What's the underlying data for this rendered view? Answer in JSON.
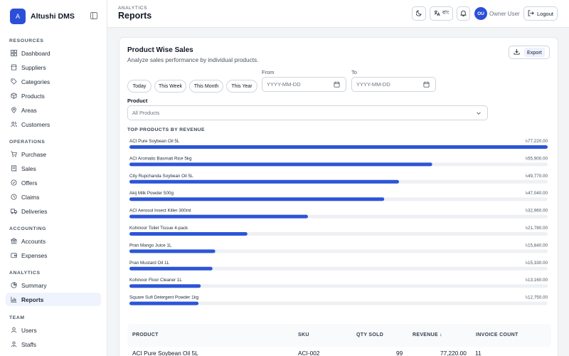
{
  "brand": {
    "logo_letter": "A",
    "name": "Altushi DMS"
  },
  "sidebar": {
    "sections": [
      {
        "title": "RESOURCES",
        "items": [
          {
            "label": "Dashboard",
            "icon": "grid-icon"
          },
          {
            "label": "Suppliers",
            "icon": "storefront-icon"
          },
          {
            "label": "Categories",
            "icon": "tag-icon"
          },
          {
            "label": "Products",
            "icon": "box-icon"
          },
          {
            "label": "Areas",
            "icon": "map-pin-icon"
          },
          {
            "label": "Customers",
            "icon": "users-icon"
          }
        ]
      },
      {
        "title": "OPERATIONS",
        "items": [
          {
            "label": "Purchase",
            "icon": "cart-icon"
          },
          {
            "label": "Sales",
            "icon": "receipt-icon"
          },
          {
            "label": "Offers",
            "icon": "badge-icon"
          },
          {
            "label": "Claims",
            "icon": "clock-icon"
          },
          {
            "label": "Deliveries",
            "icon": "truck-icon"
          }
        ]
      },
      {
        "title": "ACCOUNTING",
        "items": [
          {
            "label": "Accounts",
            "icon": "bank-icon"
          },
          {
            "label": "Expenses",
            "icon": "wallet-icon"
          }
        ]
      },
      {
        "title": "ANALYTICS",
        "items": [
          {
            "label": "Summary",
            "icon": "pie-icon"
          },
          {
            "label": "Reports",
            "icon": "bar-chart-icon",
            "active": true
          }
        ]
      },
      {
        "title": "TEAM",
        "items": [
          {
            "label": "Users",
            "icon": "user-icon"
          },
          {
            "label": "Staffs",
            "icon": "staff-icon"
          }
        ]
      }
    ]
  },
  "header": {
    "breadcrumb": "ANALYTICS",
    "title": "Reports",
    "lang_label": "বাং",
    "avatar_initials": "OU",
    "user_name": "Owner User",
    "logout_label": "Logout"
  },
  "card": {
    "title": "Product Wise Sales",
    "subtitle": "Analyze sales performance by individual products.",
    "export_label": "Export",
    "quick_ranges": [
      "Today",
      "This Week",
      "This Month",
      "This Year"
    ],
    "from_label": "From",
    "to_label": "To",
    "from_placeholder": "YYYY-MM-DD",
    "to_placeholder": "YYYY-MM-DD",
    "product_label": "Product",
    "product_value": "All Products",
    "chart_heading": "TOP PRODUCTS BY REVENUE"
  },
  "chart_data": {
    "type": "bar",
    "orientation": "horizontal",
    "categories": [
      "ACI Pure Soybean Oil 5L",
      "ACI Aromatic Basmati Rice 5kg",
      "City Rupchanda Soybean Oil 5L",
      "Akij Milk Powder 500g",
      "ACI Aerosol Insect Killer 300ml",
      "Kohinoor Toilet Tissue 4-pack",
      "Pran Mango Juice 1L",
      "Pran Mustard Oil 1L",
      "Kohinoor Floor Cleaner 1L",
      "Square Sufi Detergent Powder 1kg"
    ],
    "values": [
      77220,
      55900,
      49770,
      47040,
      32960,
      21780,
      15840,
      15330,
      13160,
      12750
    ],
    "value_labels": [
      "৳77,220.00",
      "৳55,900.00",
      "৳49,770.00",
      "৳47,040.00",
      "৳32,960.00",
      "৳21,780.00",
      "৳15,840.00",
      "৳15,330.00",
      "৳13,160.00",
      "৳12,750.00"
    ],
    "bar_color": "#2c55d8",
    "track_color": "#eef0f3",
    "xlim": [
      0,
      77220
    ]
  },
  "table": {
    "columns": [
      "PRODUCT",
      "SKU",
      "QTY SOLD",
      "REVENUE ↓",
      "INVOICE COUNT"
    ],
    "rows": [
      {
        "product": "ACI Pure Soybean Oil 5L",
        "sku": "ACI-002",
        "qty": "99",
        "revenue": "77,220.00",
        "invoices": "11"
      }
    ]
  },
  "colors": {
    "accent": "#2c4fd8",
    "active_bg": "#eff3fd"
  }
}
